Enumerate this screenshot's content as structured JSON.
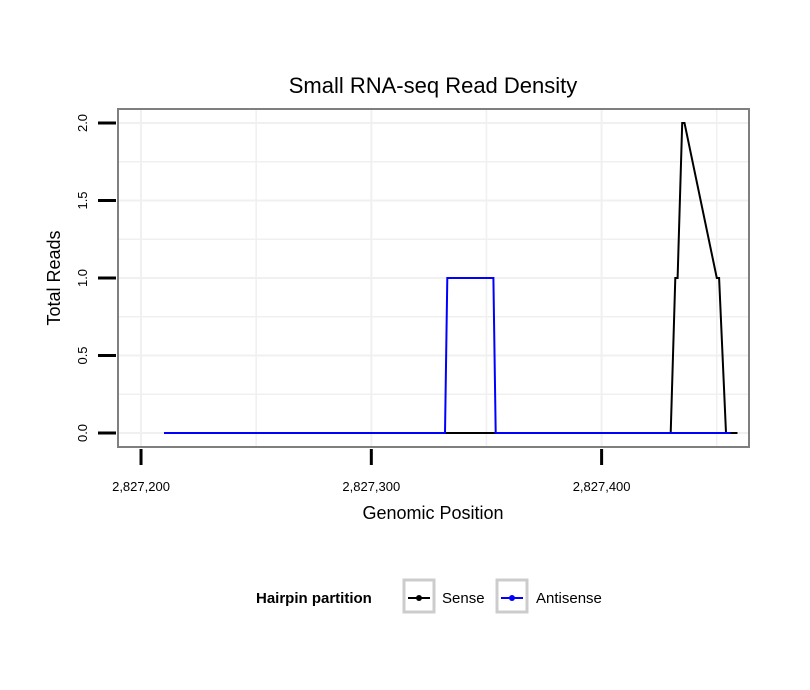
{
  "chart_data": {
    "type": "line",
    "title": "Small RNA-seq Read Density",
    "xlabel": "Genomic Position",
    "ylabel": "Total Reads",
    "xlim": [
      2827190,
      2827464
    ],
    "ylim": [
      -0.09,
      2.09
    ],
    "x_ticks": [
      2827200,
      2827300,
      2827400
    ],
    "x_tick_labels": [
      "2,827,200",
      "2,827,300",
      "2,827,400"
    ],
    "y_ticks": [
      0,
      0.5,
      1,
      1.5,
      2
    ],
    "y_tick_labels": [
      "0.0",
      "0.5",
      "1.0",
      "1.5",
      "2.0"
    ],
    "grid": true,
    "legend": {
      "title": "Hairpin partition",
      "position": "bottom",
      "entries": [
        {
          "label": "Sense",
          "color": "#000000"
        },
        {
          "label": "Antisense",
          "color": "#0000ff"
        }
      ]
    },
    "series": [
      {
        "name": "Sense",
        "color": "#000000",
        "x": [
          2827210,
          2827430,
          2827432,
          2827433,
          2827435,
          2827436,
          2827450,
          2827451,
          2827454,
          2827455,
          2827459
        ],
        "y": [
          0,
          0,
          1,
          1,
          2,
          2,
          1,
          1,
          0,
          0,
          0
        ]
      },
      {
        "name": "Antisense",
        "color": "#0000ff",
        "x": [
          2827210,
          2827332,
          2827333,
          2827353,
          2827354,
          2827456
        ],
        "y": [
          0,
          0,
          1,
          1,
          0,
          0
        ]
      }
    ]
  }
}
